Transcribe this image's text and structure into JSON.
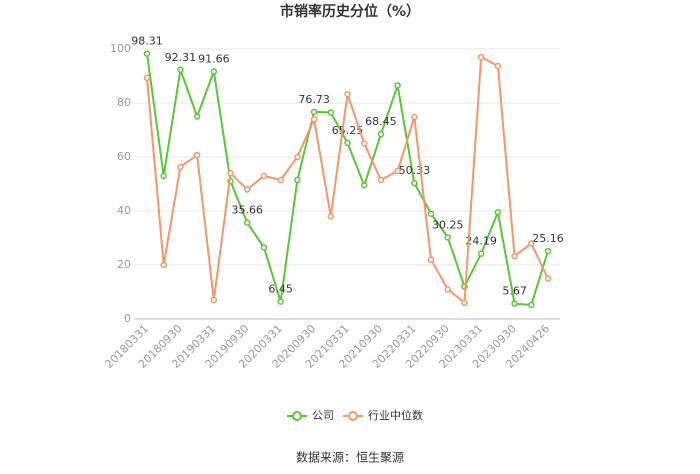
{
  "chart_data": {
    "type": "line",
    "title": "市销率历史分位（%）",
    "categories": [
      "20180331",
      null,
      "20180930",
      null,
      "20190331",
      null,
      "20190930",
      null,
      "20200331",
      null,
      "20200930",
      null,
      "20210331",
      null,
      "20210930",
      null,
      "20220331",
      null,
      "20220930",
      null,
      "20230331",
      null,
      "20230930",
      null,
      "20240426"
    ],
    "series": [
      {
        "name": "公司",
        "color": "#5cc43a",
        "values": [
          98.31,
          53,
          92.31,
          75,
          91.66,
          51,
          35.66,
          26.5,
          6.45,
          51.5,
          76.73,
          76.5,
          65.25,
          49.5,
          68.45,
          86.5,
          50.33,
          39,
          30.25,
          12,
          24.19,
          39.5,
          5.67,
          5.2,
          25.16
        ],
        "value_labels": [
          "98.31",
          null,
          "92.31",
          null,
          "91.66",
          null,
          "35.66",
          null,
          "6.45",
          null,
          "76.73",
          null,
          "65.25",
          null,
          "68.45",
          null,
          "50.33",
          null,
          "30.25",
          null,
          "24.19",
          null,
          "5.67",
          null,
          "25.16"
        ]
      },
      {
        "name": "行业中位数",
        "color": "#f4966b",
        "values": [
          89.3,
          20,
          56.3,
          60.7,
          7,
          54,
          48,
          53,
          51.5,
          60,
          74,
          38,
          83.3,
          65,
          51.5,
          54.8,
          74.8,
          22,
          11,
          6,
          97,
          93.7,
          23.3,
          28,
          15
        ]
      }
    ],
    "ylim": [
      0,
      100
    ],
    "yticks": [
      0,
      20,
      40,
      60,
      80,
      100
    ],
    "grid": true,
    "source": "数据来源：恒生聚源"
  }
}
